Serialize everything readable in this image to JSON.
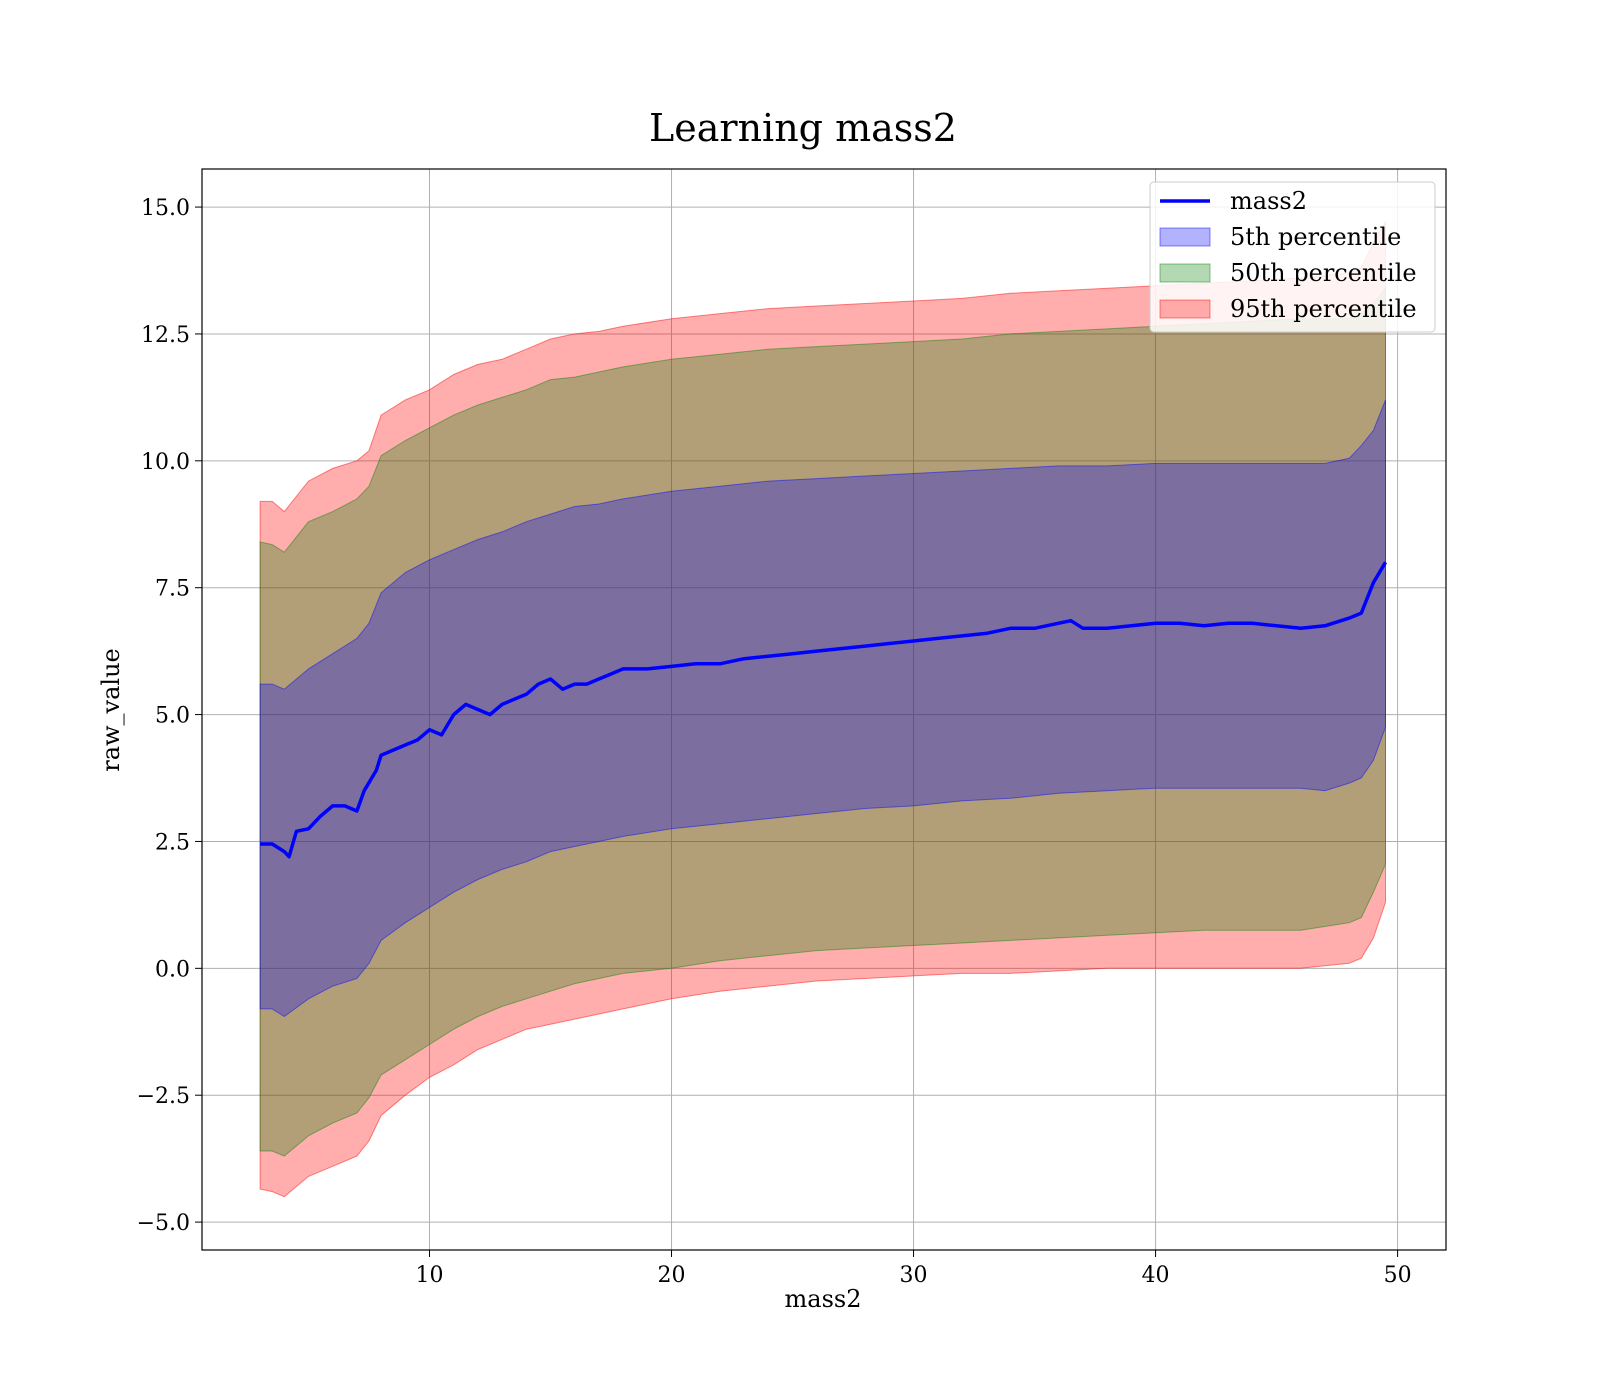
{
  "chart_data": {
    "type": "area",
    "title": "Learning mass2",
    "xlabel": "mass2",
    "ylabel": "raw_value",
    "xlim": [
      0.6,
      52.0
    ],
    "ylim": [
      -5.55,
      15.75
    ],
    "xticks": [
      10,
      20,
      30,
      40,
      50
    ],
    "xtick_labels": [
      "10",
      "20",
      "30",
      "40",
      "50"
    ],
    "yticks": [
      -5.0,
      -2.5,
      0.0,
      2.5,
      5.0,
      7.5,
      10.0,
      12.5,
      15.0
    ],
    "ytick_labels": [
      "−5.0",
      "−2.5",
      "0.0",
      "2.5",
      "5.0",
      "7.5",
      "10.0",
      "12.5",
      "15.0"
    ],
    "grid": true,
    "legend_position": "top-right",
    "line": {
      "name": "mass2",
      "color": "#0000ff",
      "x": [
        3.0,
        3.5,
        4.0,
        4.2,
        4.5,
        5.0,
        5.5,
        6.0,
        6.5,
        7.0,
        7.3,
        7.8,
        8.0,
        8.5,
        9.0,
        9.5,
        10.0,
        10.5,
        11.0,
        11.5,
        12.0,
        12.5,
        13.0,
        13.5,
        14.0,
        14.5,
        15.0,
        15.5,
        16.0,
        16.5,
        17.0,
        17.5,
        18.0,
        19.0,
        20.0,
        21.0,
        22.0,
        23.0,
        24.0,
        25.0,
        26.0,
        27.0,
        28.0,
        29.0,
        30.0,
        31.0,
        32.0,
        33.0,
        34.0,
        35.0,
        36.0,
        36.5,
        37.0,
        38.0,
        39.0,
        40.0,
        41.0,
        42.0,
        43.0,
        44.0,
        45.0,
        46.0,
        47.0,
        48.0,
        48.5,
        49.0,
        49.5
      ],
      "y": [
        2.45,
        2.45,
        2.3,
        2.2,
        2.7,
        2.75,
        3.0,
        3.2,
        3.2,
        3.1,
        3.5,
        3.9,
        4.2,
        4.3,
        4.4,
        4.5,
        4.7,
        4.6,
        5.0,
        5.2,
        5.1,
        5.0,
        5.2,
        5.3,
        5.4,
        5.6,
        5.7,
        5.5,
        5.6,
        5.6,
        5.7,
        5.8,
        5.9,
        5.9,
        5.95,
        6.0,
        6.0,
        6.1,
        6.15,
        6.2,
        6.25,
        6.3,
        6.35,
        6.4,
        6.45,
        6.5,
        6.55,
        6.6,
        6.7,
        6.7,
        6.8,
        6.85,
        6.7,
        6.7,
        6.75,
        6.8,
        6.8,
        6.75,
        6.8,
        6.8,
        6.75,
        6.7,
        6.75,
        6.9,
        7.0,
        7.6,
        8.0
      ]
    },
    "bands": [
      {
        "name": "95th percentile",
        "color": "#ff0000",
        "opacity": 0.32,
        "x": [
          3.0,
          3.5,
          4.0,
          5.0,
          6.0,
          7.0,
          7.5,
          8.0,
          9.0,
          10.0,
          11.0,
          12.0,
          13.0,
          14.0,
          15.0,
          16.0,
          17.0,
          18.0,
          20.0,
          22.0,
          24.0,
          26.0,
          28.0,
          30.0,
          32.0,
          34.0,
          36.0,
          38.0,
          40.0,
          42.0,
          44.0,
          46.0,
          48.0,
          48.5,
          49.0,
          49.5
        ],
        "lower": [
          -4.35,
          -4.4,
          -4.5,
          -4.1,
          -3.9,
          -3.7,
          -3.4,
          -2.9,
          -2.5,
          -2.15,
          -1.9,
          -1.6,
          -1.4,
          -1.2,
          -1.1,
          -1.0,
          -0.9,
          -0.8,
          -0.6,
          -0.45,
          -0.35,
          -0.25,
          -0.2,
          -0.15,
          -0.1,
          -0.1,
          -0.05,
          0.0,
          0.0,
          0.0,
          0.0,
          0.0,
          0.1,
          0.2,
          0.6,
          1.3
        ],
        "upper": [
          9.2,
          9.2,
          9.0,
          9.6,
          9.85,
          10.0,
          10.2,
          10.9,
          11.2,
          11.4,
          11.7,
          11.9,
          12.0,
          12.2,
          12.4,
          12.5,
          12.55,
          12.65,
          12.8,
          12.9,
          13.0,
          13.05,
          13.1,
          13.15,
          13.2,
          13.3,
          13.35,
          13.4,
          13.45,
          13.5,
          13.55,
          13.6,
          13.7,
          13.8,
          14.3,
          14.7
        ]
      },
      {
        "name": "50th percentile",
        "color": "#008000",
        "opacity": 0.3,
        "x": [
          3.0,
          3.5,
          4.0,
          5.0,
          6.0,
          7.0,
          7.5,
          8.0,
          9.0,
          10.0,
          11.0,
          12.0,
          13.0,
          14.0,
          15.0,
          16.0,
          17.0,
          18.0,
          20.0,
          22.0,
          24.0,
          26.0,
          28.0,
          30.0,
          32.0,
          34.0,
          36.0,
          38.0,
          40.0,
          42.0,
          44.0,
          46.0,
          48.0,
          48.5,
          49.0,
          49.5
        ],
        "lower": [
          -3.6,
          -3.6,
          -3.7,
          -3.3,
          -3.05,
          -2.85,
          -2.55,
          -2.1,
          -1.8,
          -1.5,
          -1.2,
          -0.95,
          -0.75,
          -0.6,
          -0.45,
          -0.3,
          -0.2,
          -0.1,
          0.0,
          0.15,
          0.25,
          0.35,
          0.4,
          0.45,
          0.5,
          0.55,
          0.6,
          0.65,
          0.7,
          0.75,
          0.75,
          0.75,
          0.9,
          1.0,
          1.5,
          2.05
        ],
        "upper": [
          8.4,
          8.35,
          8.2,
          8.8,
          9.0,
          9.25,
          9.5,
          10.1,
          10.4,
          10.65,
          10.9,
          11.1,
          11.25,
          11.4,
          11.6,
          11.65,
          11.75,
          11.85,
          12.0,
          12.1,
          12.2,
          12.25,
          12.3,
          12.35,
          12.4,
          12.5,
          12.55,
          12.6,
          12.65,
          12.7,
          12.75,
          12.8,
          12.8,
          12.9,
          13.1,
          13.4
        ]
      },
      {
        "name": "5th percentile",
        "color": "#0000ff",
        "opacity": 0.3,
        "x": [
          3.0,
          3.5,
          4.0,
          5.0,
          6.0,
          7.0,
          7.5,
          8.0,
          9.0,
          10.0,
          11.0,
          12.0,
          13.0,
          14.0,
          15.0,
          16.0,
          17.0,
          18.0,
          20.0,
          22.0,
          24.0,
          26.0,
          28.0,
          30.0,
          32.0,
          34.0,
          36.0,
          38.0,
          40.0,
          42.0,
          44.0,
          46.0,
          47.0,
          48.0,
          48.5,
          49.0,
          49.5
        ],
        "lower": [
          -0.8,
          -0.8,
          -0.95,
          -0.6,
          -0.35,
          -0.2,
          0.1,
          0.55,
          0.9,
          1.2,
          1.5,
          1.75,
          1.95,
          2.1,
          2.3,
          2.4,
          2.5,
          2.6,
          2.75,
          2.85,
          2.95,
          3.05,
          3.15,
          3.2,
          3.3,
          3.35,
          3.45,
          3.5,
          3.55,
          3.55,
          3.55,
          3.55,
          3.5,
          3.65,
          3.75,
          4.1,
          4.75
        ],
        "upper": [
          5.6,
          5.6,
          5.5,
          5.9,
          6.2,
          6.5,
          6.8,
          7.4,
          7.8,
          8.05,
          8.25,
          8.45,
          8.6,
          8.8,
          8.95,
          9.1,
          9.15,
          9.25,
          9.4,
          9.5,
          9.6,
          9.65,
          9.7,
          9.75,
          9.8,
          9.85,
          9.9,
          9.9,
          9.95,
          9.95,
          9.95,
          9.95,
          9.95,
          10.05,
          10.3,
          10.6,
          11.2
        ]
      }
    ],
    "legend": [
      {
        "label": "mass2",
        "kind": "line",
        "color": "#0000ff"
      },
      {
        "label": "5th percentile",
        "kind": "patch",
        "color": "#0000ff"
      },
      {
        "label": "50th percentile",
        "kind": "patch",
        "color": "#008000"
      },
      {
        "label": "95th percentile",
        "kind": "patch",
        "color": "#ff0000"
      }
    ]
  }
}
